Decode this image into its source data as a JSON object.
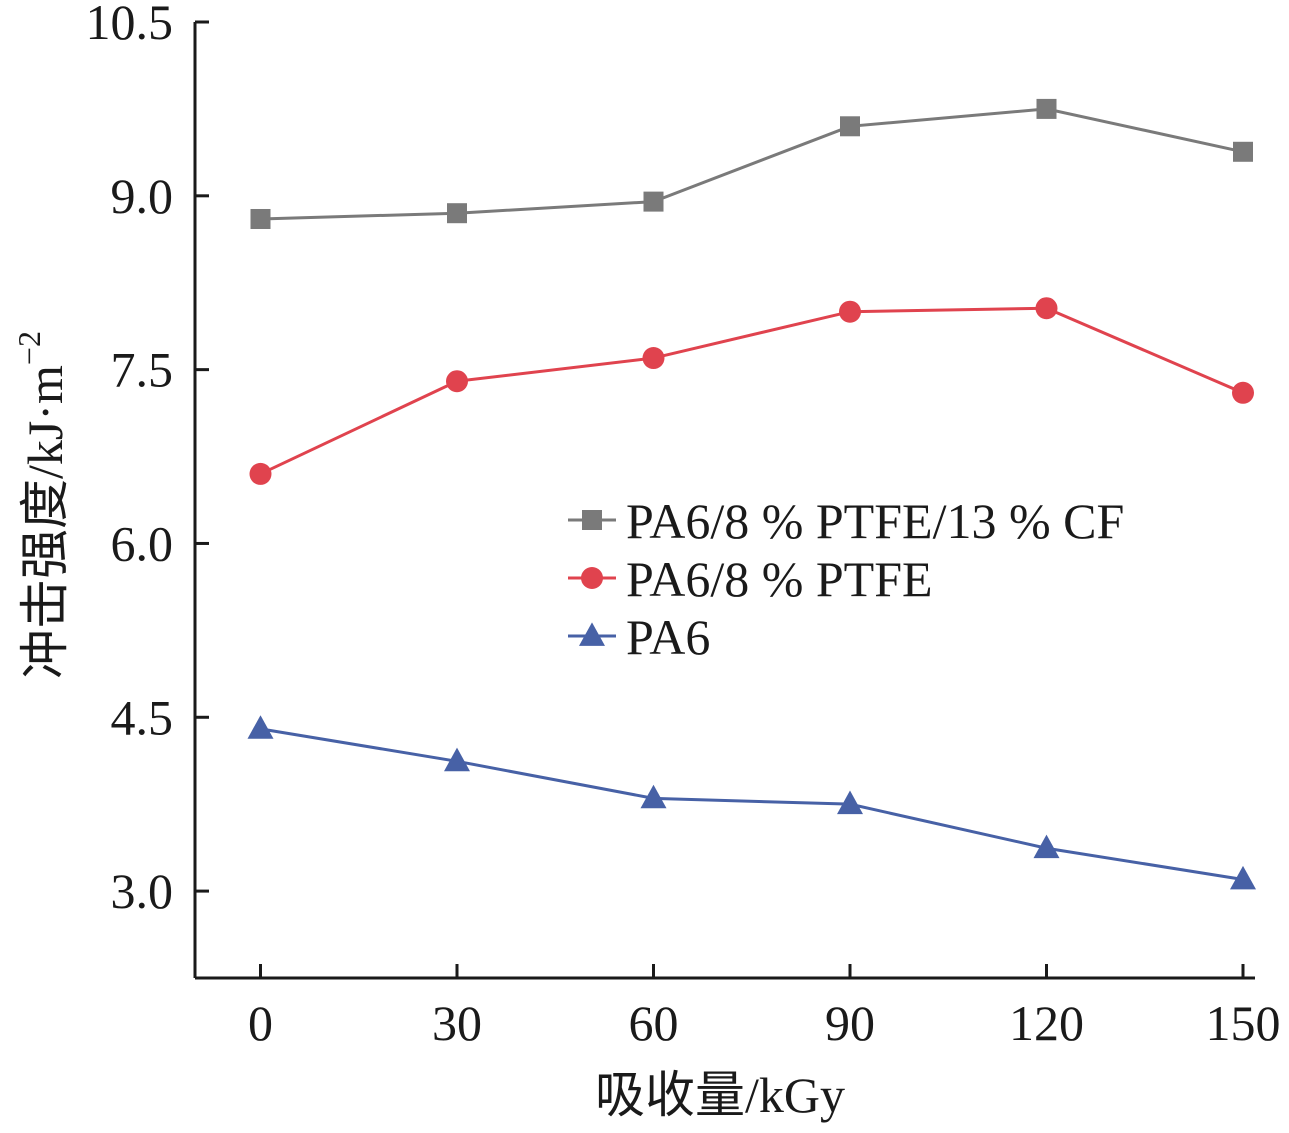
{
  "chart_data": {
    "type": "line",
    "title": "",
    "xlabel": "吸收量/kGy",
    "ylabel": "冲击强度/kJ·m",
    "ylabel_sup": "−2",
    "x": [
      0,
      30,
      60,
      90,
      120,
      150
    ],
    "x_tick_labels": [
      "0",
      "30",
      "60",
      "90",
      "120",
      "150"
    ],
    "xlim": [
      -10,
      150
    ],
    "ylim": [
      2.25,
      10.5
    ],
    "y_ticks": [
      3.0,
      4.5,
      6.0,
      7.5,
      9.0,
      10.5
    ],
    "y_tick_labels": [
      "3.0",
      "4.5",
      "6.0",
      "7.5",
      "9.0",
      "10.5"
    ],
    "grid": false,
    "legend_position": "center-right",
    "series": [
      {
        "name": "PA6/8 % PTFE/13 % CF",
        "marker": "square",
        "color": "#7a7a7a",
        "values": [
          8.8,
          8.85,
          8.95,
          9.6,
          9.75,
          9.38
        ]
      },
      {
        "name": "PA6/8 % PTFE",
        "marker": "circle",
        "color": "#e0434e",
        "values": [
          6.6,
          7.4,
          7.6,
          8.0,
          8.03,
          7.3
        ]
      },
      {
        "name": "PA6",
        "marker": "triangle",
        "color": "#4761a6",
        "values": [
          4.4,
          4.12,
          3.8,
          3.75,
          3.37,
          3.1
        ]
      }
    ]
  }
}
